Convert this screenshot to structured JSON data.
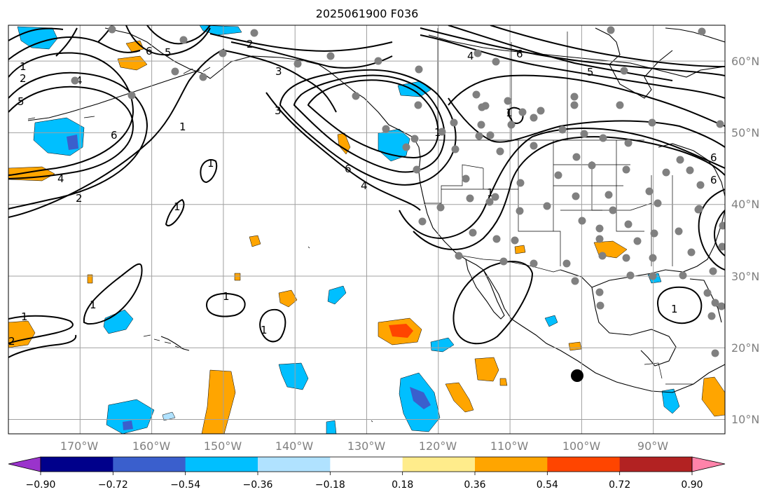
{
  "title": "2025061900 F036",
  "map": {
    "projection": "cylindrical",
    "lon_range": [
      -180,
      -80
    ],
    "lat_range": [
      8,
      65
    ],
    "lon_labels": [
      "170°W",
      "160°W",
      "150°W",
      "140°W",
      "130°W",
      "120°W",
      "110°W",
      "100°W",
      "90°W"
    ],
    "lat_labels": [
      "60°N",
      "50°N",
      "40°N",
      "30°N",
      "20°N",
      "10°N"
    ],
    "grid": true,
    "contour_labels": [
      "1",
      "2",
      "4",
      "5",
      "6",
      "2",
      "5",
      "6",
      "2",
      "3",
      "3",
      "1",
      "6",
      "4",
      "4",
      "6",
      "5",
      "6",
      "4",
      "2",
      "1",
      "1",
      "1",
      "1",
      "1",
      "1",
      "1",
      "1",
      "1",
      "1",
      "6"
    ],
    "station_marker_color": "#808080",
    "highlight_marker_color": "#000000"
  },
  "colorbar": {
    "ticks": [
      "−0.90",
      "−0.72",
      "−0.54",
      "−0.36",
      "−0.18",
      "0.18",
      "0.36",
      "0.54",
      "0.72",
      "0.90"
    ],
    "colors": [
      "#9a33cc",
      "#00008b",
      "#3a5fcd",
      "#00bfff",
      "#b0e2ff",
      "#ffffff",
      "#ffec8b",
      "#ffa500",
      "#ff4500",
      "#b22222",
      "#ff83aa"
    ],
    "extend": "both"
  }
}
